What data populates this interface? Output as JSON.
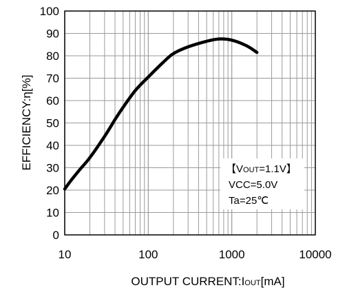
{
  "chart_data": {
    "type": "line",
    "title": "",
    "xscale": "log",
    "xlim": [
      10,
      10000
    ],
    "ylim": [
      0,
      100
    ],
    "grid": true,
    "x_ticks": [
      10,
      100,
      1000,
      10000
    ],
    "x_tick_labels": [
      "10",
      "100",
      "1000",
      "10000"
    ],
    "y_ticks": [
      0,
      10,
      20,
      30,
      40,
      50,
      60,
      70,
      80,
      90,
      100
    ],
    "y_tick_labels": [
      "0",
      "10",
      "20",
      "30",
      "40",
      "50",
      "60",
      "70",
      "80",
      "90",
      "100"
    ],
    "xlabel": {
      "main": "OUTPUT CURRENT:I",
      "sub": "OUT",
      "unit": "[mA]"
    },
    "ylabel": "EFFICIENCY:η[%]",
    "series": [
      {
        "color": "#000000",
        "x": [
          10,
          12,
          15,
          20,
          30,
          40,
          50,
          70,
          100,
          150,
          200,
          300,
          500,
          700,
          1000,
          1500,
          2000
        ],
        "y": [
          20.5,
          24.5,
          29,
          34.5,
          44,
          51.5,
          57,
          64.5,
          70.5,
          77,
          81,
          84,
          86.5,
          87.5,
          87,
          84.5,
          81.5
        ]
      }
    ],
    "annotation": {
      "line1_open": "【V",
      "line1_sub": "OUT",
      "line1_rest": "=1.1V】",
      "line2": "VCC=5.0V",
      "line3": "Ta=25℃"
    }
  }
}
